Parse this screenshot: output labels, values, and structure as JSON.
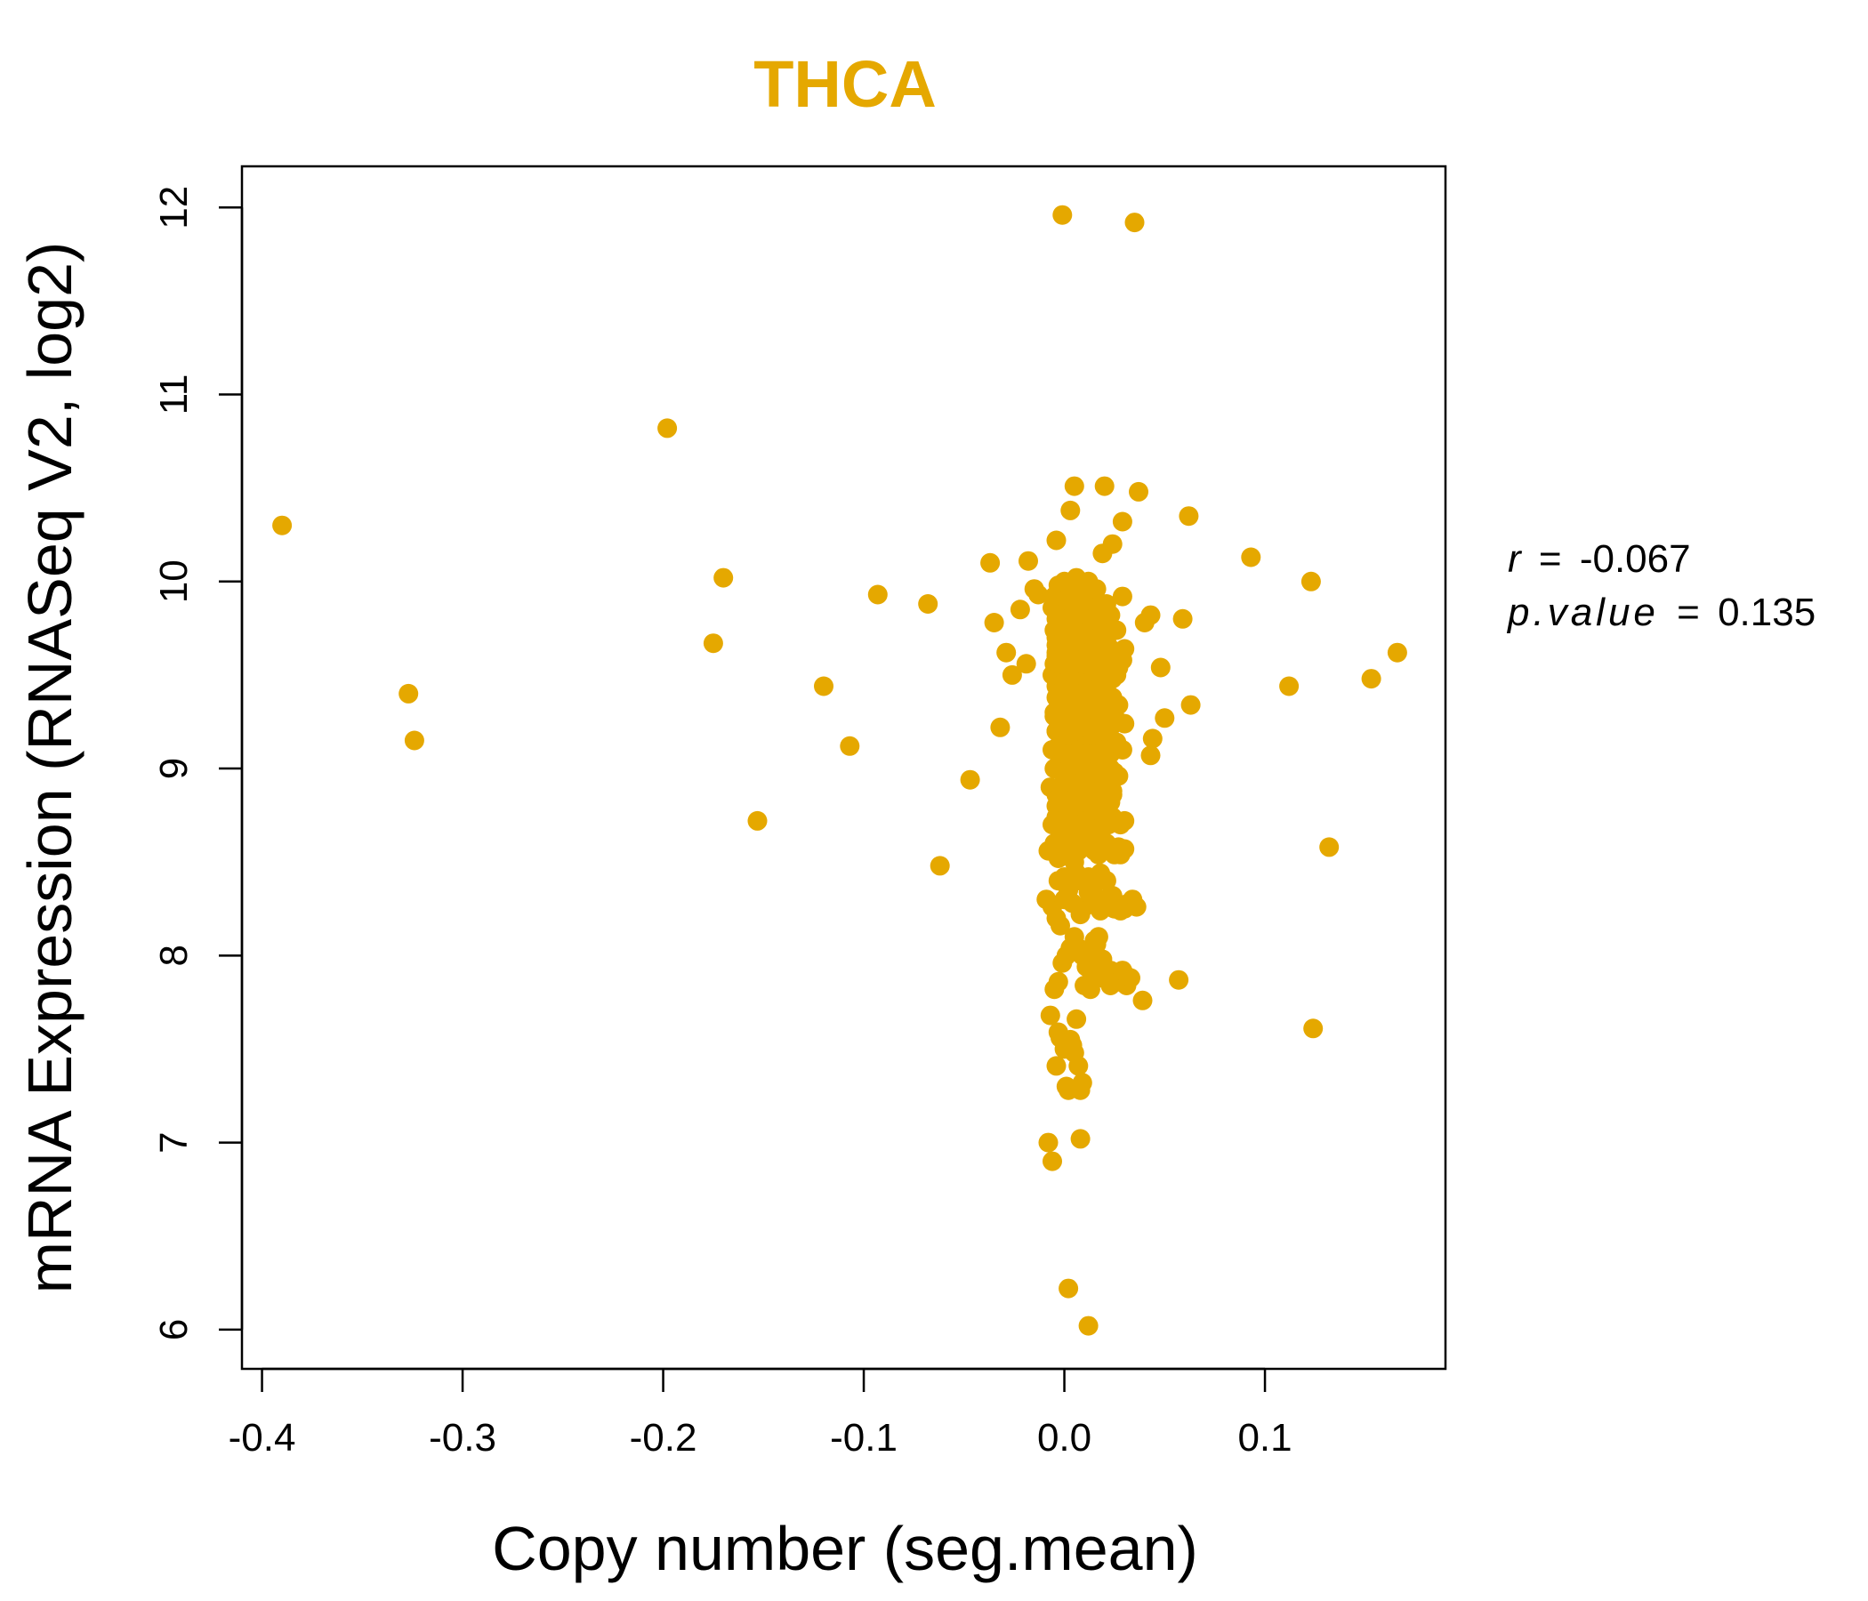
{
  "chart_data": {
    "type": "scatter",
    "title": "THCA",
    "xlabel": "Copy number (seg.mean)",
    "ylabel": "mRNA Expression (RNASeq V2, log2)",
    "xlim": [
      -0.41,
      0.19
    ],
    "ylim": [
      5.79,
      12.22
    ],
    "xticks": [
      -0.4,
      -0.3,
      -0.2,
      -0.1,
      0.0,
      0.1
    ],
    "xtick_labels": [
      "-0.4",
      "-0.3",
      "-0.2",
      "-0.1",
      "0.0",
      "0.1"
    ],
    "yticks": [
      6,
      7,
      8,
      9,
      10,
      11,
      12
    ],
    "ytick_labels": [
      "6",
      "7",
      "8",
      "9",
      "10",
      "11",
      "12"
    ],
    "point_color": "#E5A800",
    "stats": {
      "r_label": "r",
      "r_value": "-0.067",
      "p_label": "p.value",
      "p_value": "0.135",
      "equals": "="
    },
    "x": [
      -0.39,
      -0.327,
      -0.324,
      -0.198,
      -0.17,
      -0.175,
      -0.153,
      -0.12,
      -0.107,
      -0.093,
      -0.068,
      -0.062,
      -0.047,
      -0.037,
      -0.035,
      -0.032,
      -0.029,
      -0.026,
      -0.022,
      -0.019,
      -0.018,
      -0.015,
      -0.013,
      -0.001,
      0.035,
      0.005,
      0.02,
      0.037,
      0.062,
      0.003,
      0.029,
      -0.004,
      0.024,
      0.019,
      0.093,
      0.123,
      0.112,
      0.153,
      0.166,
      0.132,
      0.124,
      0.063,
      0.059,
      0.05,
      0.048,
      0.044,
      0.043,
      0.043,
      0.04,
      0.039,
      0.057,
      0.03,
      0.026,
      0.025,
      0.03,
      0.028,
      0.002,
      0.012,
      0.008,
      -0.008,
      -0.006,
      -0.004,
      -0.003,
      -0.002,
      0.0,
      0.001,
      0.002,
      0.003,
      0.004,
      0.005,
      0.006,
      0.007,
      0.008,
      0.009,
      0.01,
      0.011,
      0.012,
      0.013,
      0.014,
      0.015,
      0.016,
      0.017,
      0.018,
      0.019,
      0.02,
      0.021,
      0.022,
      0.023,
      0.024,
      0.025,
      -0.007,
      -0.005,
      -0.003,
      -0.001,
      0.001,
      0.003,
      0.005,
      0.007,
      0.009,
      0.011,
      0.013,
      0.015,
      0.017,
      0.019,
      0.021,
      0.023,
      0.027,
      0.029,
      0.031,
      0.033,
      -0.009,
      -0.006,
      -0.004,
      -0.002,
      0.0,
      0.002,
      0.004,
      0.006,
      0.008,
      0.01,
      0.012,
      0.014,
      0.016,
      0.018,
      0.02,
      0.022,
      0.024,
      0.026,
      0.028,
      0.03,
      0.032,
      0.034,
      0.036,
      -0.008,
      -0.005,
      -0.003,
      -0.001,
      0.001,
      0.003,
      0.005,
      0.007,
      0.009,
      0.011,
      0.013,
      0.015,
      0.017,
      0.019,
      0.021,
      0.023,
      0.025,
      0.027,
      -0.006,
      -0.004,
      -0.002,
      0.0,
      0.002,
      0.004,
      0.006,
      0.008,
      0.01,
      0.012,
      0.014,
      0.016,
      0.018,
      0.02,
      0.022,
      0.024,
      0.026,
      0.028,
      0.03,
      -0.007,
      -0.004,
      -0.002,
      0.0,
      0.002,
      0.004,
      0.006,
      0.008,
      0.01,
      0.012,
      0.014,
      0.016,
      0.018,
      0.02,
      0.022,
      0.024,
      -0.005,
      -0.003,
      -0.001,
      0.001,
      0.003,
      0.005,
      0.007,
      0.009,
      0.011,
      0.013,
      0.015,
      0.017,
      0.019,
      0.021,
      0.023,
      0.025,
      0.027,
      -0.006,
      -0.003,
      0.0,
      0.002,
      0.005,
      0.008,
      0.011,
      0.014,
      0.017,
      0.02,
      0.023,
      0.026,
      0.029,
      -0.004,
      -0.001,
      0.002,
      0.005,
      0.008,
      0.011,
      0.014,
      0.017,
      0.02,
      0.023,
      -0.005,
      -0.002,
      0.001,
      0.004,
      0.007,
      0.01,
      0.013,
      0.016,
      0.019,
      0.022,
      0.025,
      -0.003,
      0.0,
      0.003,
      0.006,
      0.009,
      0.012,
      0.015,
      0.018,
      0.021,
      0.024,
      0.027,
      -0.004,
      -0.001,
      0.002,
      0.005,
      0.008,
      0.011,
      0.014,
      0.017,
      0.02,
      -0.006,
      -0.003,
      0.0,
      0.003,
      0.006,
      0.009,
      0.012,
      0.015,
      0.018,
      0.021,
      0.024,
      0.027,
      -0.005,
      -0.002,
      0.001,
      0.004,
      0.007,
      0.01,
      0.013,
      0.016,
      0.019,
      0.022,
      0.025,
      -0.004,
      -0.001,
      0.002,
      0.005,
      0.008,
      0.011,
      0.014,
      0.017,
      0.02,
      0.023,
      -0.003,
      0.0,
      0.003,
      0.006,
      0.009,
      0.012,
      0.015,
      0.018,
      0.021,
      0.026,
      -0.005,
      -0.002,
      0.001,
      0.004,
      0.007,
      0.01,
      0.013,
      0.016,
      0.019,
      0.022,
      -0.004,
      -0.001,
      0.002,
      0.005,
      0.008,
      0.011,
      0.014,
      0.017,
      0.02,
      0.023,
      -0.006,
      -0.003,
      0.0,
      0.003,
      0.006,
      0.009,
      0.012,
      0.015,
      0.018,
      0.021,
      -0.005,
      -0.002,
      0.001,
      0.004,
      0.007,
      0.01,
      0.013,
      0.016,
      -0.004,
      -0.001,
      0.002,
      0.005,
      0.008,
      0.011,
      0.014,
      0.017,
      0.02,
      0.026,
      0.029,
      -0.005,
      -0.002,
      0.001,
      0.004,
      0.007,
      0.01,
      0.013,
      0.016,
      0.019,
      0.022,
      0.025,
      -0.004,
      -0.001,
      0.002,
      0.005,
      0.008,
      0.011,
      0.014,
      0.017,
      0.02,
      0.023,
      -0.003,
      0.0,
      0.003,
      0.006,
      0.009,
      0.012,
      0.015,
      0.018,
      0.021,
      -0.005,
      -0.002,
      0.001,
      0.004,
      0.007,
      0.01,
      0.013,
      0.016,
      0.019,
      0.022,
      -0.003,
      0.0,
      0.003,
      0.006,
      0.009,
      0.012,
      -0.004,
      -0.001,
      0.002,
      0.005,
      0.008,
      0.011,
      0.014,
      0.017,
      0.02,
      0.029,
      -0.003,
      0.0,
      0.003,
      0.006,
      0.009,
      0.012,
      0.015,
      0.018,
      0.021,
      -0.004,
      -0.001,
      0.002,
      0.005,
      0.008,
      0.011,
      0.014,
      0.017,
      0.02,
      0.026,
      0.03,
      -0.003,
      0.0,
      0.003,
      0.006,
      0.009,
      0.012,
      0.015,
      0.018,
      0.021,
      0.024,
      -0.004,
      -0.001,
      0.002,
      0.005,
      0.008,
      0.011,
      0.014,
      0.017,
      0.02,
      0.023,
      -0.003,
      0.0,
      0.003,
      0.006,
      0.009,
      0.012,
      0.015,
      0.018,
      0.021,
      -0.002,
      0.001,
      0.004,
      0.007,
      0.01,
      0.013,
      0.016,
      0.019,
      -0.004,
      -0.001,
      0.002,
      0.005,
      0.008,
      0.011,
      0.014,
      0.017,
      -0.003,
      0.0,
      0.003,
      0.006,
      0.009,
      0.012,
      0.015,
      0.018,
      0.021,
      0.024,
      0.027,
      0.03
    ],
    "y": [
      10.3,
      9.4,
      9.15,
      10.82,
      10.02,
      9.67,
      8.72,
      9.44,
      9.12,
      9.93,
      9.88,
      8.48,
      8.94,
      10.1,
      9.78,
      9.22,
      9.62,
      9.5,
      9.85,
      9.56,
      10.11,
      9.96,
      9.93,
      11.96,
      11.92,
      10.51,
      10.51,
      10.48,
      10.35,
      10.38,
      10.32,
      10.22,
      10.2,
      10.15,
      10.13,
      10.0,
      9.44,
      9.48,
      9.62,
      8.58,
      7.61,
      9.34,
      9.8,
      9.27,
      9.54,
      9.16,
      9.07,
      9.82,
      9.78,
      7.76,
      7.87,
      7.9,
      7.86,
      8.25,
      8.57,
      8.54,
      6.22,
      6.02,
      7.02,
      7.0,
      6.9,
      7.41,
      7.59,
      7.56,
      7.5,
      7.3,
      7.28,
      7.55,
      7.52,
      7.48,
      7.66,
      7.41,
      7.28,
      7.32,
      7.84,
      7.94,
      7.96,
      7.82,
      8.0,
      8.08,
      8.06,
      8.1,
      7.9,
      7.88,
      7.88,
      7.92,
      7.92,
      7.84,
      7.86,
      7.87,
      7.68,
      7.82,
      7.86,
      7.96,
      8.0,
      8.04,
      8.1,
      8.04,
      8.0,
      7.94,
      7.92,
      8.02,
      7.96,
      7.98,
      7.9,
      7.92,
      7.86,
      7.92,
      7.84,
      7.88,
      8.3,
      8.26,
      8.2,
      8.16,
      8.3,
      8.35,
      8.28,
      8.4,
      8.22,
      8.26,
      8.34,
      8.3,
      8.28,
      8.24,
      8.3,
      8.26,
      8.32,
      8.28,
      8.24,
      8.25,
      8.28,
      8.3,
      8.26,
      8.56,
      8.6,
      8.52,
      8.64,
      8.58,
      8.54,
      8.5,
      8.56,
      8.62,
      8.58,
      8.6,
      8.56,
      8.54,
      8.58,
      8.6,
      8.56,
      8.54,
      8.58,
      8.7,
      8.74,
      8.68,
      8.72,
      8.7,
      8.76,
      8.72,
      8.7,
      8.68,
      8.74,
      8.72,
      8.7,
      8.76,
      8.72,
      8.7,
      8.74,
      8.72,
      8.7,
      8.72,
      8.9,
      8.86,
      8.88,
      8.92,
      8.9,
      8.86,
      8.88,
      8.9,
      8.92,
      8.88,
      8.86,
      8.9,
      8.88,
      8.92,
      8.9,
      8.88,
      9.0,
      9.02,
      8.98,
      9.04,
      9.0,
      8.96,
      9.02,
      9.04,
      9.0,
      8.98,
      9.02,
      9.0,
      8.96,
      9.02,
      9.0,
      8.98,
      8.96,
      9.1,
      9.12,
      9.08,
      9.14,
      9.1,
      9.12,
      9.08,
      9.14,
      9.1,
      9.12,
      9.08,
      9.14,
      9.1,
      9.2,
      9.22,
      9.18,
      9.24,
      9.2,
      9.22,
      9.18,
      9.24,
      9.2,
      9.22,
      9.28,
      9.3,
      9.26,
      9.32,
      9.28,
      9.3,
      9.26,
      9.32,
      9.28,
      9.3,
      9.26,
      9.36,
      9.38,
      9.34,
      9.4,
      9.36,
      9.38,
      9.34,
      9.4,
      9.36,
      9.38,
      9.34,
      9.44,
      9.46,
      9.42,
      9.48,
      9.44,
      9.46,
      9.42,
      9.48,
      9.44,
      9.5,
      9.52,
      9.48,
      9.54,
      9.5,
      9.52,
      9.48,
      9.54,
      9.5,
      9.52,
      9.48,
      9.54,
      9.56,
      9.58,
      9.54,
      9.6,
      9.56,
      9.58,
      9.54,
      9.6,
      9.56,
      9.58,
      9.54,
      9.62,
      9.64,
      9.6,
      9.66,
      9.62,
      9.64,
      9.6,
      9.66,
      9.62,
      9.64,
      9.68,
      9.7,
      9.66,
      9.72,
      9.68,
      9.7,
      9.66,
      9.72,
      9.68,
      9.74,
      9.74,
      9.76,
      9.72,
      9.78,
      9.74,
      9.76,
      9.72,
      9.78,
      9.74,
      9.76,
      9.8,
      9.82,
      9.78,
      9.84,
      9.8,
      9.82,
      9.78,
      9.84,
      9.8,
      9.82,
      9.86,
      9.88,
      9.84,
      9.9,
      9.86,
      9.88,
      9.84,
      9.9,
      9.86,
      9.88,
      9.92,
      9.94,
      9.9,
      9.96,
      9.92,
      9.94,
      9.9,
      9.96,
      9.38,
      9.4,
      9.36,
      9.42,
      9.38,
      9.4,
      9.36,
      9.42,
      9.38,
      9.5,
      9.58,
      9.5,
      9.52,
      9.48,
      9.54,
      9.5,
      9.52,
      9.48,
      9.54,
      9.5,
      9.52,
      9.56,
      9.6,
      9.62,
      9.58,
      9.64,
      9.6,
      9.62,
      9.58,
      9.64,
      9.6,
      9.62,
      9.44,
      9.46,
      9.42,
      9.48,
      9.44,
      9.46,
      9.42,
      9.48,
      9.44,
      9.3,
      9.32,
      9.28,
      9.34,
      9.3,
      9.32,
      9.28,
      9.34,
      9.3,
      9.32,
      9.98,
      10.0,
      9.96,
      10.02,
      9.98,
      10.0,
      9.7,
      9.72,
      9.68,
      9.74,
      9.7,
      9.72,
      9.68,
      9.74,
      9.7,
      9.92,
      9.56,
      9.58,
      9.54,
      9.6,
      9.56,
      9.58,
      9.54,
      9.6,
      9.56,
      9.2,
      9.22,
      9.18,
      9.24,
      9.2,
      9.22,
      9.18,
      9.24,
      9.2,
      9.26,
      9.24,
      8.84,
      8.86,
      8.82,
      8.88,
      8.84,
      8.86,
      8.82,
      8.88,
      8.84,
      8.86,
      8.8,
      8.82,
      8.78,
      8.84,
      8.8,
      8.82,
      8.78,
      8.84,
      8.8,
      8.82,
      8.4,
      8.42,
      8.38,
      8.44,
      8.4,
      8.42,
      8.38,
      8.44,
      8.4,
      8.64,
      8.66,
      8.62,
      8.68,
      8.64,
      8.66,
      8.62,
      8.68,
      9.66,
      9.68,
      9.64,
      9.7,
      9.66,
      9.68,
      9.64,
      9.7,
      9.6,
      9.62,
      9.58,
      9.64,
      9.6,
      9.62,
      9.58,
      9.64,
      9.6,
      9.62,
      9.58,
      9.64
    ]
  }
}
